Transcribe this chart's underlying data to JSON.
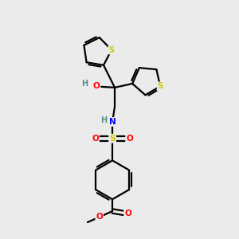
{
  "background_color": "#ebebeb",
  "figsize": [
    3.0,
    3.0
  ],
  "dpi": 100,
  "atom_colors": {
    "S": "#cccc00",
    "N": "#0000ff",
    "O": "#ff0000",
    "H": "#5a8a8a",
    "C": "#000000"
  },
  "bond_color": "#000000",
  "bond_lw": 1.6
}
